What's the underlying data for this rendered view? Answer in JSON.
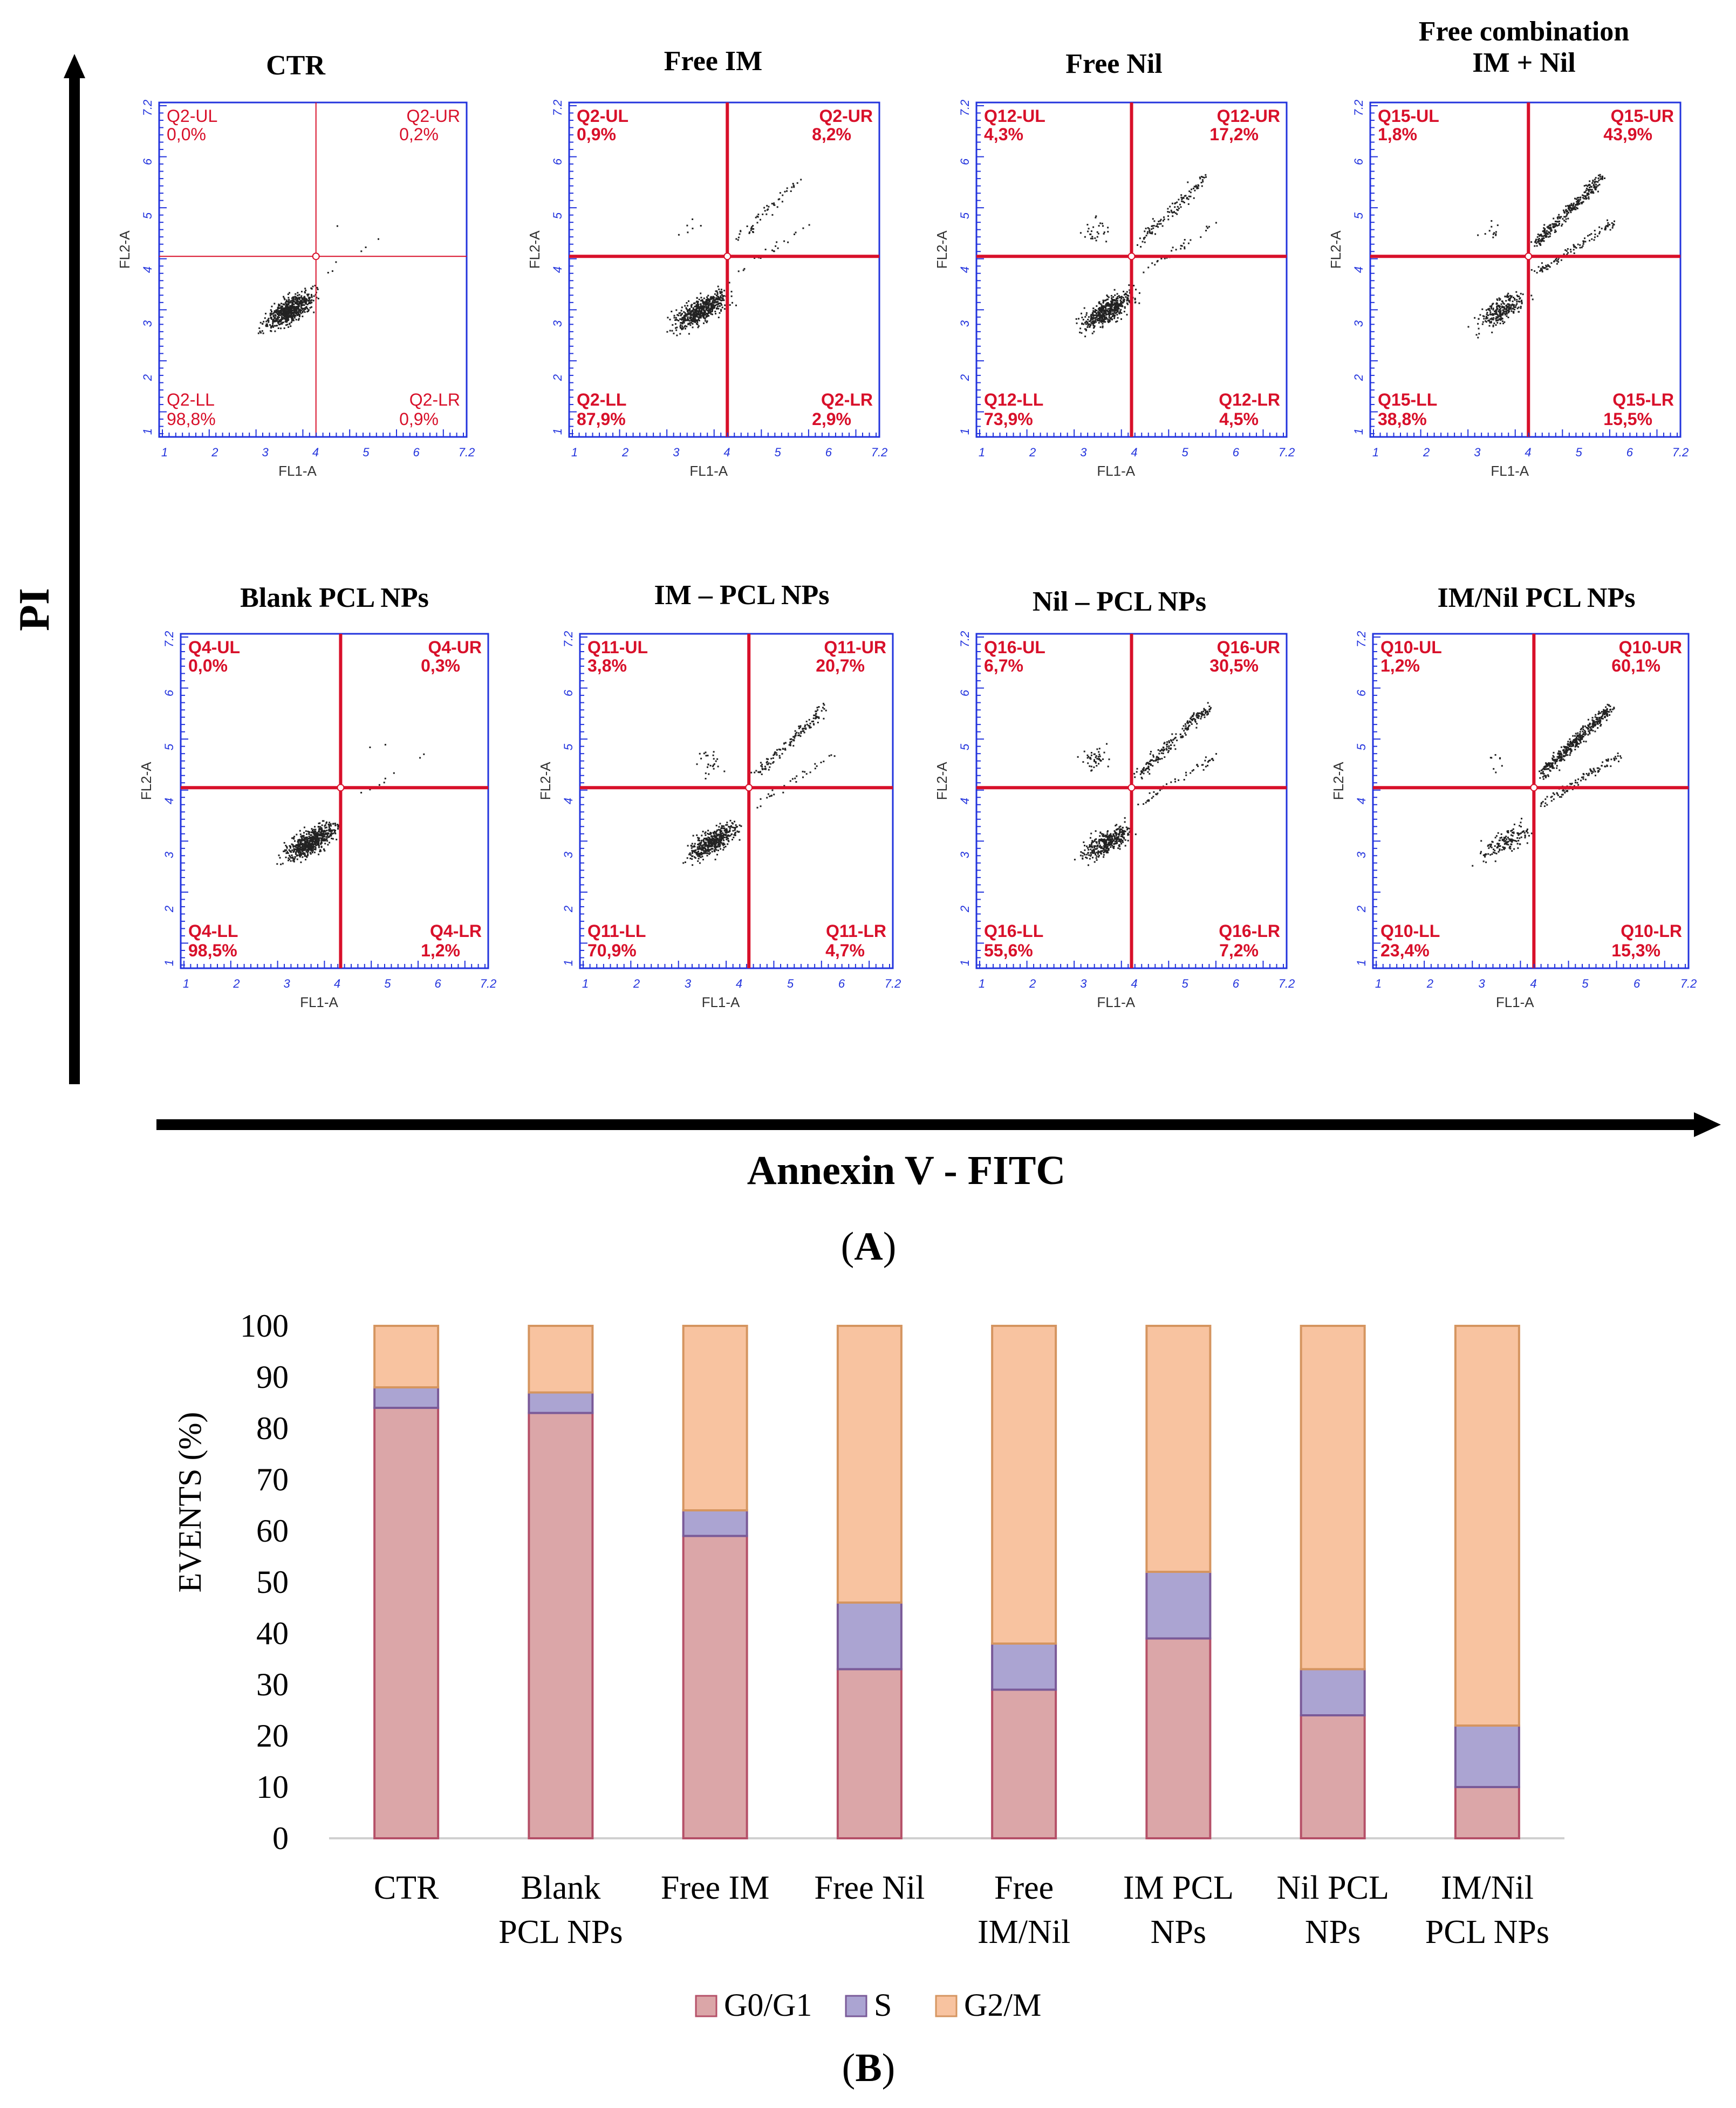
{
  "panel_a": {
    "label": "A",
    "y_axis_title": "PI",
    "x_axis_title": "Annexin V - FITC",
    "plot_x_label": "FL1-A",
    "plot_y_label": "FL2-A",
    "tick_labels": [
      "1",
      "2",
      "3",
      "4",
      "5",
      "6",
      "7.2"
    ],
    "colors": {
      "gate": "#d8102a",
      "frame": "#2233dd",
      "tick": "#2233dd",
      "dot": "#222222",
      "axis": "#000000"
    },
    "plots": [
      {
        "title": "CTR",
        "title2": "",
        "q_ul": "Q2-UL",
        "v_ul": "0,0%",
        "q_ur": "Q2-UR",
        "v_ur": "0,2%",
        "q_ll": "Q2-LL",
        "v_ll": "98,8%",
        "q_lr": "Q2-LR",
        "v_lr": "0,9%"
      },
      {
        "title": "Free IM",
        "title2": "",
        "q_ul": "Q2-UL",
        "v_ul": "0,9%",
        "q_ur": "Q2-UR",
        "v_ur": "8,2%",
        "q_ll": "Q2-LL",
        "v_ll": "87,9%",
        "q_lr": "Q2-LR",
        "v_lr": "2,9%"
      },
      {
        "title": "Free Nil",
        "title2": "",
        "q_ul": "Q12-UL",
        "v_ul": "4,3%",
        "q_ur": "Q12-UR",
        "v_ur": "17,2%",
        "q_ll": "Q12-LL",
        "v_ll": "73,9%",
        "q_lr": "Q12-LR",
        "v_lr": "4,5%"
      },
      {
        "title": "Free combination",
        "title2": "IM + Nil",
        "q_ul": "Q15-UL",
        "v_ul": "1,8%",
        "q_ur": "Q15-UR",
        "v_ur": "43,9%",
        "q_ll": "Q15-LL",
        "v_ll": "38,8%",
        "q_lr": "Q15-LR",
        "v_lr": "15,5%"
      },
      {
        "title": "Blank PCL NPs",
        "title2": "",
        "q_ul": "Q4-UL",
        "v_ul": "0,0%",
        "q_ur": "Q4-UR",
        "v_ur": "0,3%",
        "q_ll": "Q4-LL",
        "v_ll": "98,5%",
        "q_lr": "Q4-LR",
        "v_lr": "1,2%"
      },
      {
        "title": "IM – PCL NPs",
        "title2": "",
        "q_ul": "Q11-UL",
        "v_ul": "3,8%",
        "q_ur": "Q11-UR",
        "v_ur": "20,7%",
        "q_ll": "Q11-LL",
        "v_ll": "70,9%",
        "q_lr": "Q11-LR",
        "v_lr": "4,7%"
      },
      {
        "title": "Nil – PCL NPs",
        "title2": "",
        "q_ul": "Q16-UL",
        "v_ul": "6,7%",
        "q_ur": "Q16-UR",
        "v_ur": "30,5%",
        "q_ll": "Q16-LL",
        "v_ll": "55,6%",
        "q_lr": "Q16-LR",
        "v_lr": "7,2%"
      },
      {
        "title": "IM/Nil PCL NPs",
        "title2": "",
        "q_ul": "Q10-UL",
        "v_ul": "1,2%",
        "q_ur": "Q10-UR",
        "v_ur": "60,1%",
        "q_ll": "Q10-LL",
        "v_ll": "23,4%",
        "q_lr": "Q10-LR",
        "v_lr": "15,3%"
      }
    ]
  },
  "panel_b": {
    "label": "B"
  },
  "chart_data": {
    "type": "bar",
    "stacked": true,
    "title": "",
    "xlabel": "",
    "ylabel": "EVENTS (%)",
    "ylim": [
      0,
      100
    ],
    "yticks": [
      0,
      10,
      20,
      30,
      40,
      50,
      60,
      70,
      80,
      90,
      100
    ],
    "legend_position": "bottom",
    "categories": [
      "CTR",
      "Blank PCL NPs",
      "Free IM",
      "Free Nil",
      "Free IM/Nil",
      "IM PCL NPs",
      "Nil PCL NPs",
      "IM/Nil PCL NPs"
    ],
    "category_lines": [
      [
        "CTR"
      ],
      [
        "Blank",
        "PCL NPs"
      ],
      [
        "Free IM"
      ],
      [
        "Free Nil"
      ],
      [
        "Free",
        "IM/Nil"
      ],
      [
        "IM PCL",
        "NPs"
      ],
      [
        "Nil PCL",
        "NPs"
      ],
      [
        "IM/Nil",
        "PCL NPs"
      ]
    ],
    "series": [
      {
        "name": "G0/G1",
        "color": "#dba6a8",
        "edge": "#b55068",
        "values": [
          84,
          83,
          59,
          33,
          29,
          39,
          24,
          10
        ]
      },
      {
        "name": "S",
        "color": "#aba4d2",
        "edge": "#7a5a98",
        "values": [
          4,
          4,
          5,
          13,
          9,
          13,
          9,
          12
        ]
      },
      {
        "name": "G2/M",
        "color": "#f8c3a0",
        "edge": "#d59560",
        "values": [
          12,
          13,
          36,
          54,
          62,
          48,
          67,
          78
        ]
      }
    ]
  }
}
